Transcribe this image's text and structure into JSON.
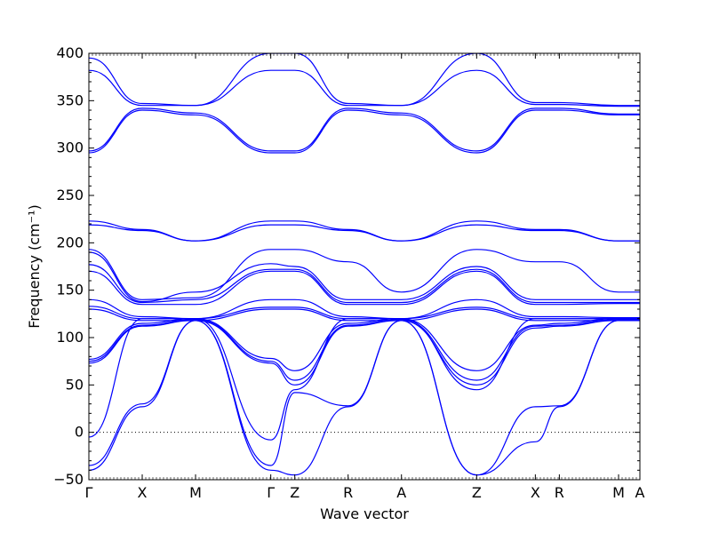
{
  "chart_data": {
    "type": "line",
    "title": "",
    "xlabel": "Wave vector",
    "ylabel": "Frequency (cm⁻¹)",
    "ylim": [
      -50,
      400
    ],
    "y_ticks": [
      -50,
      0,
      50,
      100,
      150,
      200,
      250,
      300,
      350,
      400
    ],
    "x_range": [
      0,
      10.33
    ],
    "x_ticks": [
      {
        "label": "Γ",
        "x": 0.0
      },
      {
        "label": "X",
        "x": 1.0
      },
      {
        "label": "M",
        "x": 2.0
      },
      {
        "label": "Γ",
        "x": 3.41
      },
      {
        "label": "Z",
        "x": 3.86
      },
      {
        "label": "R",
        "x": 4.86
      },
      {
        "label": "A",
        "x": 5.86
      },
      {
        "label": "Z",
        "x": 7.27
      },
      {
        "label": "X",
        "x": 8.37
      },
      {
        "label": "R",
        "x": 8.82
      },
      {
        "label": "M",
        "x": 9.93
      },
      {
        "label": "A",
        "x": 10.33
      }
    ],
    "zero_line": {
      "y": 0,
      "style": "dotted"
    },
    "grid": false,
    "series_color": "#0000ff",
    "series": [
      {
        "name": "",
        "points": [
          [
            0,
            395
          ],
          [
            1,
            347
          ],
          [
            2,
            345
          ],
          [
            3.41,
            400
          ],
          [
            3.86,
            400
          ],
          [
            4.86,
            347
          ],
          [
            5.86,
            345
          ],
          [
            7.27,
            400
          ],
          [
            8.37,
            348
          ],
          [
            8.82,
            348
          ],
          [
            9.93,
            345
          ],
          [
            10.33,
            345
          ]
        ]
      },
      {
        "name": "",
        "points": [
          [
            0,
            382
          ],
          [
            1,
            345
          ],
          [
            2,
            345
          ],
          [
            3.41,
            382
          ],
          [
            3.86,
            382
          ],
          [
            4.86,
            345
          ],
          [
            5.86,
            345
          ],
          [
            7.27,
            382
          ],
          [
            8.37,
            346
          ],
          [
            8.82,
            346
          ],
          [
            9.93,
            344
          ],
          [
            10.33,
            344
          ]
        ]
      },
      {
        "name": "",
        "points": [
          [
            0,
            297
          ],
          [
            1,
            342
          ],
          [
            2,
            337
          ],
          [
            3.41,
            297
          ],
          [
            3.86,
            297
          ],
          [
            4.86,
            342
          ],
          [
            5.86,
            337
          ],
          [
            7.27,
            297
          ],
          [
            8.37,
            342
          ],
          [
            8.82,
            342
          ],
          [
            9.93,
            336
          ],
          [
            10.33,
            336
          ]
        ]
      },
      {
        "name": "",
        "points": [
          [
            0,
            295
          ],
          [
            1,
            340
          ],
          [
            2,
            335
          ],
          [
            3.41,
            295
          ],
          [
            3.86,
            295
          ],
          [
            4.86,
            340
          ],
          [
            5.86,
            335
          ],
          [
            7.27,
            295
          ],
          [
            8.37,
            340
          ],
          [
            8.82,
            340
          ],
          [
            9.93,
            335
          ],
          [
            10.33,
            335
          ]
        ]
      },
      {
        "name": "",
        "points": [
          [
            0,
            223
          ],
          [
            1,
            214
          ],
          [
            2,
            202
          ],
          [
            3.41,
            223
          ],
          [
            3.86,
            223
          ],
          [
            4.86,
            214
          ],
          [
            5.86,
            202
          ],
          [
            7.27,
            223
          ],
          [
            8.37,
            214
          ],
          [
            8.82,
            214
          ],
          [
            9.93,
            202
          ],
          [
            10.33,
            202
          ]
        ]
      },
      {
        "name": "",
        "points": [
          [
            0,
            219
          ],
          [
            1,
            213
          ],
          [
            2,
            202
          ],
          [
            3.41,
            219
          ],
          [
            3.86,
            219
          ],
          [
            4.86,
            213
          ],
          [
            5.86,
            202
          ],
          [
            7.27,
            219
          ],
          [
            8.37,
            213
          ],
          [
            8.82,
            213
          ],
          [
            9.93,
            202
          ],
          [
            10.33,
            202
          ]
        ]
      },
      {
        "name": "",
        "points": [
          [
            0,
            193
          ],
          [
            1,
            140
          ],
          [
            2,
            142
          ],
          [
            3.41,
            193
          ],
          [
            3.86,
            193
          ],
          [
            4.86,
            180
          ],
          [
            5.86,
            148
          ],
          [
            7.27,
            193
          ],
          [
            8.37,
            180
          ],
          [
            8.82,
            180
          ],
          [
            9.93,
            148
          ],
          [
            10.33,
            148
          ]
        ]
      },
      {
        "name": "",
        "points": [
          [
            0,
            190
          ],
          [
            1,
            138
          ],
          [
            2,
            148
          ],
          [
            3.41,
            178
          ],
          [
            3.86,
            175
          ],
          [
            4.86,
            140
          ],
          [
            5.86,
            140
          ],
          [
            7.27,
            175
          ],
          [
            8.37,
            140
          ],
          [
            8.82,
            140
          ],
          [
            9.93,
            140
          ],
          [
            10.33,
            140
          ]
        ]
      },
      {
        "name": "",
        "points": [
          [
            0,
            177
          ],
          [
            1,
            137
          ],
          [
            2,
            140
          ],
          [
            3.41,
            172
          ],
          [
            3.86,
            172
          ],
          [
            4.86,
            137
          ],
          [
            5.86,
            137
          ],
          [
            7.27,
            172
          ],
          [
            8.37,
            137
          ],
          [
            8.82,
            137
          ],
          [
            9.93,
            137
          ],
          [
            10.33,
            137
          ]
        ]
      },
      {
        "name": "",
        "points": [
          [
            0,
            170
          ],
          [
            1,
            135
          ],
          [
            2,
            135
          ],
          [
            3.41,
            170
          ],
          [
            3.86,
            170
          ],
          [
            4.86,
            135
          ],
          [
            5.86,
            135
          ],
          [
            7.27,
            170
          ],
          [
            8.37,
            135
          ],
          [
            8.82,
            135
          ],
          [
            9.93,
            136
          ],
          [
            10.33,
            136
          ]
        ]
      },
      {
        "name": "",
        "points": [
          [
            0,
            140
          ],
          [
            1,
            122
          ],
          [
            2,
            120
          ],
          [
            3.41,
            140
          ],
          [
            3.86,
            140
          ],
          [
            4.86,
            122
          ],
          [
            5.86,
            120
          ],
          [
            7.27,
            140
          ],
          [
            8.37,
            122
          ],
          [
            8.82,
            122
          ],
          [
            9.93,
            121
          ],
          [
            10.33,
            121
          ]
        ]
      },
      {
        "name": "",
        "points": [
          [
            0,
            133
          ],
          [
            1,
            120
          ],
          [
            2,
            120
          ],
          [
            3.41,
            132
          ],
          [
            3.86,
            132
          ],
          [
            4.86,
            120
          ],
          [
            5.86,
            120
          ],
          [
            7.27,
            132
          ],
          [
            8.37,
            120
          ],
          [
            8.82,
            120
          ],
          [
            9.93,
            120
          ],
          [
            10.33,
            120
          ]
        ]
      },
      {
        "name": "",
        "points": [
          [
            0,
            130
          ],
          [
            1,
            118
          ],
          [
            2,
            118
          ],
          [
            3.41,
            130
          ],
          [
            3.86,
            130
          ],
          [
            4.86,
            118
          ],
          [
            5.86,
            118
          ],
          [
            7.27,
            130
          ],
          [
            8.37,
            118
          ],
          [
            8.82,
            118
          ],
          [
            9.93,
            118
          ],
          [
            10.33,
            118
          ]
        ]
      },
      {
        "name": "",
        "points": [
          [
            0,
            77
          ],
          [
            1,
            115
          ],
          [
            2,
            120
          ],
          [
            3.41,
            78
          ],
          [
            3.86,
            65
          ],
          [
            4.86,
            115
          ],
          [
            5.86,
            120
          ],
          [
            7.27,
            65
          ],
          [
            8.37,
            113
          ],
          [
            8.82,
            115
          ],
          [
            9.93,
            120
          ],
          [
            10.33,
            120
          ]
        ]
      },
      {
        "name": "",
        "points": [
          [
            0,
            75
          ],
          [
            1,
            113
          ],
          [
            2,
            119
          ],
          [
            3.41,
            75
          ],
          [
            3.86,
            55
          ],
          [
            4.86,
            113
          ],
          [
            5.86,
            119
          ],
          [
            7.27,
            55
          ],
          [
            8.37,
            112
          ],
          [
            8.82,
            113
          ],
          [
            9.93,
            119
          ],
          [
            10.33,
            119
          ]
        ]
      },
      {
        "name": "",
        "points": [
          [
            0,
            73
          ],
          [
            1,
            112
          ],
          [
            2,
            118
          ],
          [
            3.41,
            73
          ],
          [
            3.86,
            50
          ],
          [
            4.86,
            112
          ],
          [
            5.86,
            118
          ],
          [
            7.27,
            50
          ],
          [
            8.37,
            110
          ],
          [
            8.82,
            112
          ],
          [
            9.93,
            118
          ],
          [
            10.33,
            118
          ]
        ]
      },
      {
        "name": "",
        "points": [
          [
            0,
            -5
          ],
          [
            1,
            120
          ],
          [
            2,
            120
          ],
          [
            3.41,
            -8
          ],
          [
            3.86,
            45
          ],
          [
            4.86,
            120
          ],
          [
            5.86,
            120
          ],
          [
            7.27,
            45
          ],
          [
            8.37,
            120
          ],
          [
            8.82,
            120
          ],
          [
            9.93,
            120
          ],
          [
            10.33,
            120
          ]
        ]
      },
      {
        "name": "",
        "points": [
          [
            0,
            -35
          ],
          [
            1,
            30
          ],
          [
            2,
            118
          ],
          [
            3.41,
            -35
          ],
          [
            3.86,
            42
          ],
          [
            4.86,
            28
          ],
          [
            5.86,
            118
          ],
          [
            7.27,
            -45
          ],
          [
            8.37,
            27
          ],
          [
            8.82,
            28
          ],
          [
            9.93,
            118
          ],
          [
            10.33,
            118
          ]
        ]
      },
      {
        "name": "",
        "points": [
          [
            0,
            -40
          ],
          [
            1,
            27
          ],
          [
            2,
            118
          ],
          [
            3.41,
            -40
          ],
          [
            3.86,
            -45
          ],
          [
            4.86,
            27
          ],
          [
            5.86,
            118
          ],
          [
            7.27,
            -45
          ],
          [
            8.37,
            -10
          ],
          [
            8.82,
            27
          ],
          [
            9.93,
            118
          ],
          [
            10.33,
            118
          ]
        ]
      }
    ]
  }
}
